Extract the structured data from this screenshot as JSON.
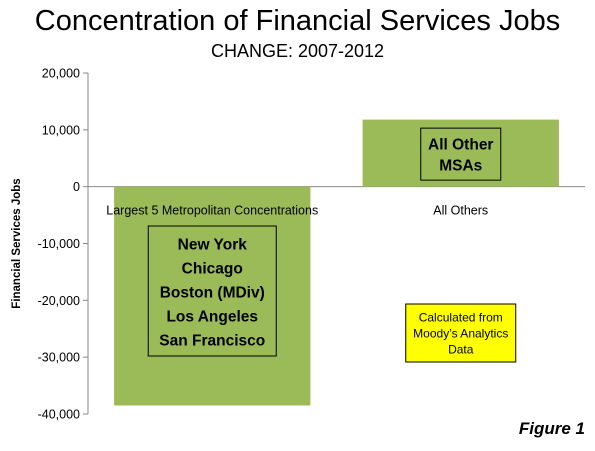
{
  "chart_data": {
    "type": "bar",
    "title": "Concentration of Financial Services Jobs",
    "subtitle": "CHANGE: 2007-2012",
    "ylabel": "Financial Services Jobs",
    "xlabel": "",
    "categories": [
      "Largest 5 Metropolitan Concentrations",
      "All Others"
    ],
    "values": [
      -38500,
      11800
    ],
    "ylim": [
      -40000,
      20000
    ],
    "yticks": [
      20000,
      10000,
      0,
      -10000,
      -20000,
      -30000,
      -40000
    ],
    "ytick_labels": [
      "20,000",
      "10,000",
      "0",
      "-10,000",
      "-20,000",
      "-30,000",
      "-40,000"
    ],
    "grid": false,
    "bar_color": "#9bbb59",
    "annotations": {
      "metros": [
        "New York",
        "Chicago",
        "Boston (MDiv)",
        "Los Angeles",
        "San Francisco"
      ],
      "others": [
        "All Other",
        "MSAs"
      ],
      "note": [
        "Calculated from",
        "Moody’s Analytics",
        "Data"
      ]
    },
    "note_color": "#ffff00"
  },
  "figure_label": "Figure 1"
}
